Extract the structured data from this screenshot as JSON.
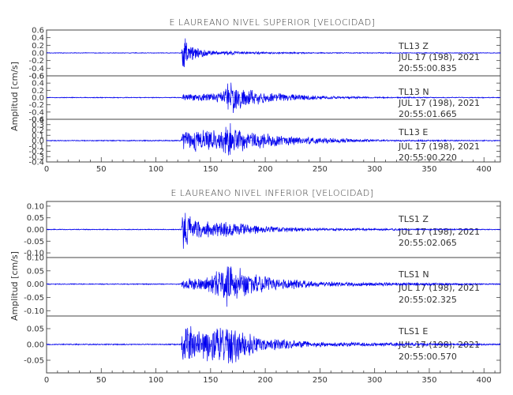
{
  "chart_data": [
    {
      "type": "line",
      "title": "E LAUREANO NIVEL SUPERIOR [VELOCIDAD]",
      "ylabel": "Amplitud [cm/s]",
      "xlim": [
        0,
        415
      ],
      "xticks": [
        "0",
        "50",
        "100",
        "150",
        "200",
        "250",
        "300",
        "350",
        "400"
      ],
      "traces": [
        {
          "ylim": [
            -0.6,
            0.6
          ],
          "yticks": [
            "0.6",
            "0.4",
            "0.2",
            "0.0",
            "-0.2",
            "-0.4",
            "-0.6"
          ],
          "station": "TL13",
          "component": "Z",
          "date": "JUL 17 (198), 2021",
          "time": "20:55:00.835",
          "onset": 125,
          "second_arrival": 168,
          "envelope": [
            [
              0,
              0.01
            ],
            [
              123,
              0.01
            ],
            [
              125,
              0.58
            ],
            [
              128,
              0.35
            ],
            [
              135,
              0.15
            ],
            [
              160,
              0.05
            ],
            [
              168,
              0.07
            ],
            [
              175,
              0.04
            ],
            [
              250,
              0.015
            ],
            [
              415,
              0.01
            ]
          ]
        },
        {
          "ylim": [
            -0.6,
            0.6
          ],
          "yticks": [
            "0.6",
            "0.4",
            "0.2",
            "0.0",
            "-0.2",
            "-0.4",
            "-0.6"
          ],
          "station": "TL13",
          "component": "N",
          "date": "JUL 17 (198), 2021",
          "time": "20:55:01.665",
          "onset": 125,
          "second_arrival": 168,
          "envelope": [
            [
              0,
              0.012
            ],
            [
              123,
              0.012
            ],
            [
              125,
              0.08
            ],
            [
              135,
              0.1
            ],
            [
              160,
              0.15
            ],
            [
              168,
              0.5
            ],
            [
              180,
              0.28
            ],
            [
              200,
              0.15
            ],
            [
              250,
              0.05
            ],
            [
              300,
              0.02
            ],
            [
              415,
              0.012
            ]
          ]
        },
        {
          "ylim": [
            -0.4,
            0.4
          ],
          "yticks": [
            "0.4",
            "0.3",
            "0.2",
            "0.1",
            "0.0",
            "-0.1",
            "-0.2",
            "-0.3",
            "-0.4"
          ],
          "station": "TL13",
          "component": "E",
          "date": "JUL 17 (198), 2021",
          "time": "20:55:00.220",
          "onset": 125,
          "second_arrival": 168,
          "envelope": [
            [
              0,
              0.01
            ],
            [
              123,
              0.01
            ],
            [
              125,
              0.22
            ],
            [
              140,
              0.22
            ],
            [
              160,
              0.22
            ],
            [
              168,
              0.33
            ],
            [
              180,
              0.22
            ],
            [
              200,
              0.14
            ],
            [
              250,
              0.06
            ],
            [
              300,
              0.02
            ],
            [
              415,
              0.01
            ]
          ]
        }
      ]
    },
    {
      "type": "line",
      "title": "E LAUREANO NIVEL INFERIOR [VELOCIDAD]",
      "ylabel": "Amplitud [cm/s]",
      "xlim": [
        0,
        415
      ],
      "xticks": [
        "0",
        "50",
        "100",
        "150",
        "200",
        "250",
        "300",
        "350",
        "400"
      ],
      "traces": [
        {
          "ylim": [
            -0.12,
            0.12
          ],
          "yticks": [
            "0.10",
            "0.05",
            "0.00",
            "-0.05",
            "-0.10"
          ],
          "station": "TLS1",
          "component": "Z",
          "date": "JUL 17 (198), 2021",
          "time": "20:55:02.065",
          "onset": 125,
          "second_arrival": 168,
          "envelope": [
            [
              0,
              0.002
            ],
            [
              123,
              0.002
            ],
            [
              125,
              0.12
            ],
            [
              130,
              0.06
            ],
            [
              140,
              0.04
            ],
            [
              168,
              0.035
            ],
            [
              200,
              0.015
            ],
            [
              250,
              0.006
            ],
            [
              415,
              0.002
            ]
          ]
        },
        {
          "ylim": [
            -0.12,
            0.1
          ],
          "yticks": [
            "0.10",
            "0.05",
            "0.00",
            "-0.05",
            "-0.10"
          ],
          "station": "TLS1",
          "component": "N",
          "date": "JUL 17 (198), 2021",
          "time": "20:55:02.325",
          "onset": 125,
          "second_arrival": 168,
          "envelope": [
            [
              0,
              0.002
            ],
            [
              123,
              0.002
            ],
            [
              125,
              0.02
            ],
            [
              150,
              0.03
            ],
            [
              168,
              0.1
            ],
            [
              180,
              0.05
            ],
            [
              200,
              0.03
            ],
            [
              250,
              0.01
            ],
            [
              415,
              0.002
            ]
          ]
        },
        {
          "ylim": [
            -0.09,
            0.09
          ],
          "yticks": [
            "0.05",
            "0.00",
            "-0.05"
          ],
          "station": "TLS1",
          "component": "E",
          "date": "JUL 17 (198), 2021",
          "time": "20:55:00.570",
          "onset": 125,
          "second_arrival": 168,
          "envelope": [
            [
              0,
              0.002
            ],
            [
              123,
              0.002
            ],
            [
              125,
              0.07
            ],
            [
              140,
              0.05
            ],
            [
              168,
              0.065
            ],
            [
              180,
              0.045
            ],
            [
              200,
              0.02
            ],
            [
              250,
              0.008
            ],
            [
              415,
              0.002
            ]
          ]
        }
      ]
    }
  ],
  "colors": {
    "trace": "#0000ee",
    "axes": "#444444",
    "text": "#333333"
  }
}
